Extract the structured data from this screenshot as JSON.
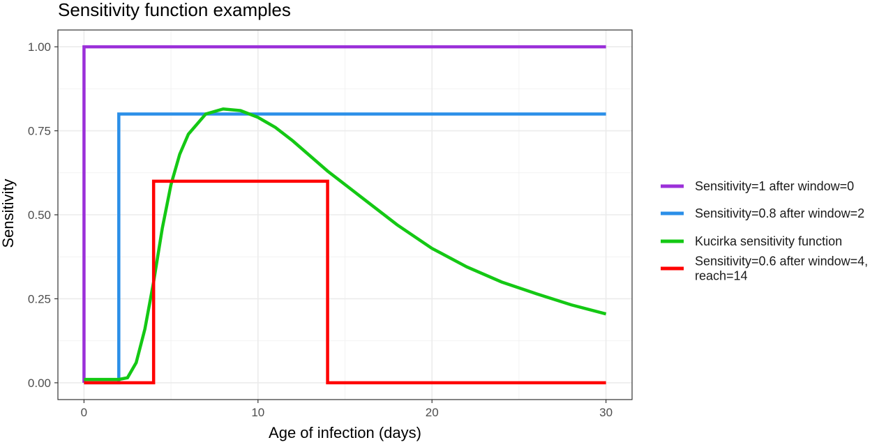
{
  "chart_data": {
    "type": "line",
    "title": "Sensitivity function examples",
    "xlabel": "Age of infection (days)",
    "ylabel": "Sensitivity",
    "xlim": [
      -1.5,
      31.5
    ],
    "ylim": [
      -0.05,
      1.05
    ],
    "x_ticks": [
      0,
      10,
      20,
      30
    ],
    "x_tick_labels": [
      "0",
      "10",
      "20",
      "30"
    ],
    "y_ticks": [
      0,
      0.25,
      0.5,
      0.75,
      1
    ],
    "y_tick_labels": [
      "0.00",
      "0.25",
      "0.50",
      "0.75",
      "1.00"
    ],
    "grid": true,
    "legend_position": "right",
    "series": [
      {
        "name": "Sensitivity=1 after window=0",
        "color": "#9b30d9",
        "x": [
          0,
          0,
          30
        ],
        "y": [
          0,
          1,
          1
        ]
      },
      {
        "name": "Sensitivity=0.8 after window=2",
        "color": "#2b8fe8",
        "x": [
          0,
          2,
          2,
          30
        ],
        "y": [
          0,
          0,
          0.8,
          0.8
        ]
      },
      {
        "name": "Kucirka sensitivity function",
        "color": "#14c814",
        "x": [
          0,
          1,
          2,
          2.5,
          3,
          3.5,
          4,
          4.5,
          5,
          5.5,
          6,
          7,
          8,
          9,
          10,
          11,
          12,
          14,
          16,
          18,
          20,
          22,
          24,
          26,
          28,
          30
        ],
        "y": [
          0.01,
          0.01,
          0.01,
          0.015,
          0.06,
          0.16,
          0.3,
          0.46,
          0.59,
          0.68,
          0.74,
          0.8,
          0.815,
          0.81,
          0.79,
          0.76,
          0.72,
          0.63,
          0.55,
          0.47,
          0.4,
          0.345,
          0.3,
          0.265,
          0.232,
          0.205
        ]
      },
      {
        "name": "Sensitivity=0.6 after window=4, reach=14",
        "color": "#ff0000",
        "x": [
          0,
          4,
          4,
          14,
          14,
          30
        ],
        "y": [
          0,
          0,
          0.6,
          0.6,
          0,
          0
        ]
      }
    ]
  }
}
